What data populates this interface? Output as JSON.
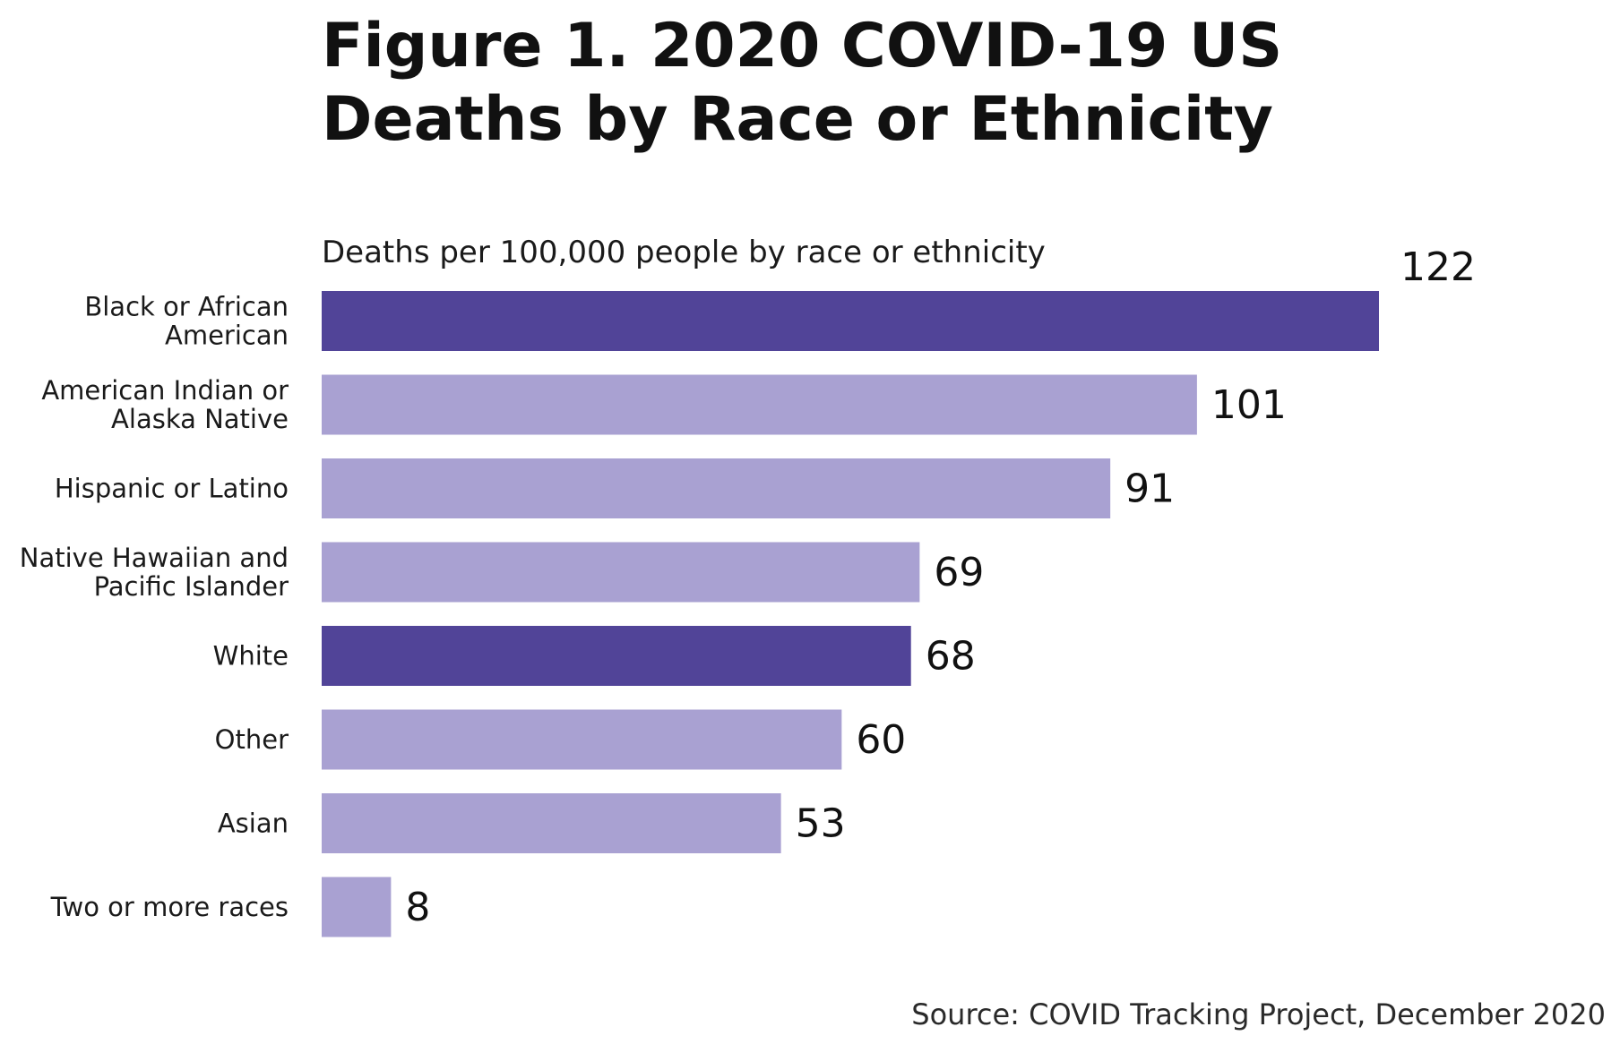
{
  "chart_data": {
    "type": "bar",
    "orientation": "horizontal",
    "title": [
      "Figure 1. 2020 COVID-19 US",
      "Deaths by Race or Ethnicity"
    ],
    "subtitle": "Deaths per 100,000 people by race or ethnicity",
    "categories": [
      [
        "Black or African",
        "American"
      ],
      [
        "American Indian or",
        "Alaska Native"
      ],
      [
        "Hispanic or Latino"
      ],
      [
        "Native Hawaiian and",
        "Pacific Islander"
      ],
      [
        "White"
      ],
      [
        "Other"
      ],
      [
        "Asian"
      ],
      [
        "Two or more races"
      ]
    ],
    "values": [
      122,
      101,
      91,
      69,
      68,
      60,
      53,
      8
    ],
    "colors": [
      "#514498",
      "#a9a1d2",
      "#a9a1d2",
      "#a9a1d2",
      "#514498",
      "#a9a1d2",
      "#a9a1d2",
      "#a9a1d2"
    ],
    "xlim": [
      0,
      122
    ],
    "grid": false,
    "legend": "none",
    "source": "Source: COVID Tracking Project, December 2020"
  }
}
